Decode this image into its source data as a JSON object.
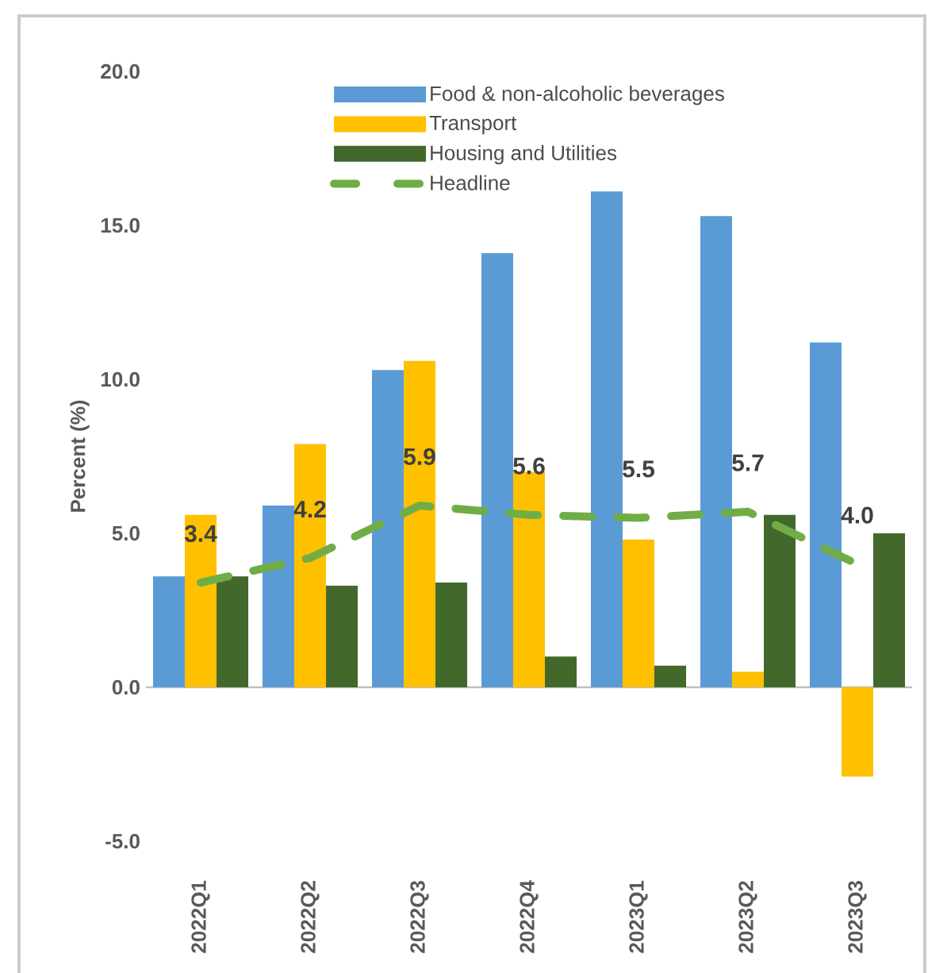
{
  "chart_data": {
    "type": "bar",
    "ylabel": "Percent (%)",
    "categories": [
      "2022Q1",
      "2022Q2",
      "2022Q3",
      "2022Q4",
      "2023Q1",
      "2023Q2",
      "2023Q3"
    ],
    "series": [
      {
        "name": "Food & non-alcoholic beverages",
        "color": "#5b9bd5",
        "values": [
          3.6,
          5.9,
          10.3,
          14.1,
          16.1,
          15.3,
          11.2
        ]
      },
      {
        "name": "Transport",
        "color": "#ffc000",
        "values": [
          5.6,
          7.9,
          10.6,
          7.0,
          4.8,
          0.5,
          -2.9
        ]
      },
      {
        "name": "Housing and Utilities",
        "color": "#43682b",
        "values": [
          3.6,
          3.3,
          3.4,
          1.0,
          0.7,
          5.6,
          5.0
        ]
      },
      {
        "name": "Headline",
        "type": "line",
        "color": "#70ad47",
        "line_style": "dashed",
        "values": [
          3.4,
          4.2,
          5.9,
          5.6,
          5.5,
          5.7,
          4.0
        ],
        "value_labels": [
          "3.4",
          "4.2",
          "5.9",
          "5.6",
          "5.5",
          "5.7",
          "4.0"
        ]
      }
    ],
    "ylim": [
      -5,
      20
    ],
    "yticks": [
      {
        "value": -5,
        "label": "-5.0"
      },
      {
        "value": 0,
        "label": "0.0"
      },
      {
        "value": 5,
        "label": "5.0"
      },
      {
        "value": 10,
        "label": "10.0"
      },
      {
        "value": 15,
        "label": "15.0"
      },
      {
        "value": 20,
        "label": "20.0"
      }
    ],
    "legend": "top",
    "marker": "none"
  }
}
